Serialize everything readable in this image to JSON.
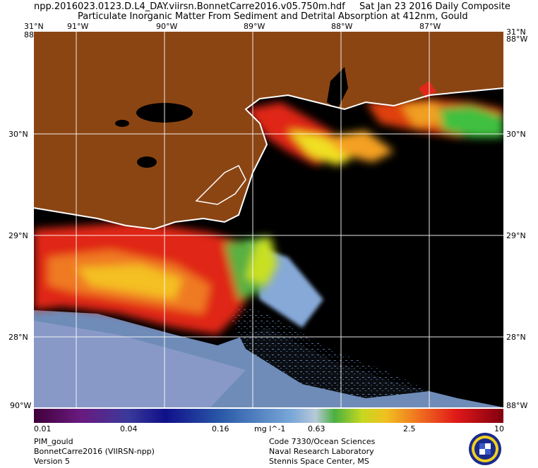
{
  "header": {
    "file_name": "npp.2016023.0123.D.L4_DAY.viirsn.BonnetCarre2016.v05.750m.hdf",
    "date_label": "Sat Jan 23 2016 Daily Composite",
    "product_title": "Particulate Inorganic Matter From Sediment and Detrital Absorption at 412nm, Gould"
  },
  "map": {
    "top_longitudes": [
      "91°W",
      "90°W",
      "89°W",
      "88°W",
      "87°W"
    ],
    "latitudes": [
      "30°N",
      "29°N",
      "28°N"
    ],
    "corner_top_left": "31°N",
    "corner_top_left_lon": "88°W",
    "corner_top_right": "31°N",
    "corner_top_right_lon": "88°W",
    "corner_bottom_left": "90°W",
    "corner_bottom_right": "88°W",
    "colors": {
      "land": "#8b4513",
      "no_data": "#000000",
      "coast": "#ffffff"
    }
  },
  "colorbar": {
    "ticks": [
      "0.01",
      "0.04",
      "0.16",
      "0.63",
      "2.5",
      "10"
    ],
    "unit": "mg l^-1"
  },
  "footer": {
    "left": [
      "PIM_gould",
      "BonnetCarre2016 (VIIRSN-npp)",
      "Version 5"
    ],
    "right": [
      "Code 7330/Ocean Sciences",
      "Naval Research Laboratory",
      "Stennis Space Center, MS"
    ]
  }
}
